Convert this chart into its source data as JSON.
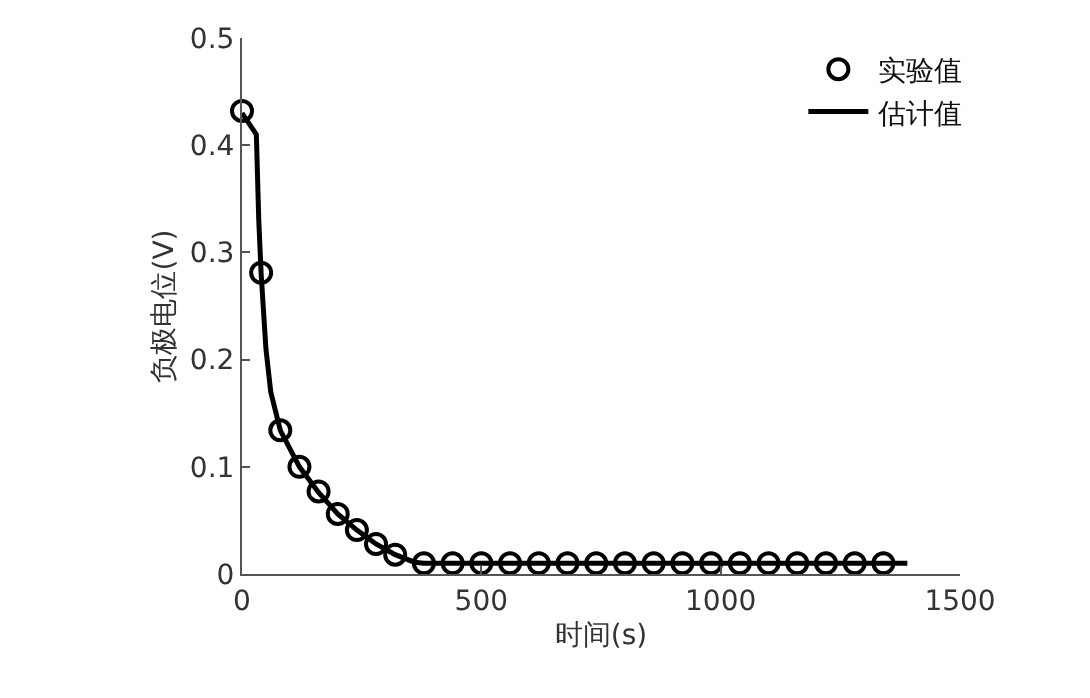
{
  "chart_data": {
    "type": "line",
    "xlabel": "时间(s)",
    "ylabel": "负极电位(V)",
    "xlim": [
      0,
      1500
    ],
    "ylim": [
      0,
      0.5
    ],
    "xticks": [
      0,
      500,
      1000,
      1500
    ],
    "yticks": [
      0,
      0.1,
      0.2,
      0.3,
      0.4,
      0.5
    ],
    "grid": false,
    "legend": "top right",
    "series": [
      {
        "name": "实验值",
        "type": "scatter",
        "marker": "circle",
        "color": "#000000",
        "x": [
          0,
          40,
          80,
          120,
          160,
          200,
          240,
          280,
          320,
          380,
          440,
          500,
          560,
          620,
          680,
          740,
          800,
          860,
          920,
          980,
          1040,
          1100,
          1160,
          1220,
          1280,
          1340
        ],
        "values": [
          0.432,
          0.281,
          0.134,
          0.1,
          0.077,
          0.056,
          0.041,
          0.028,
          0.018,
          0.01,
          0.01,
          0.01,
          0.01,
          0.01,
          0.01,
          0.01,
          0.01,
          0.01,
          0.01,
          0.01,
          0.01,
          0.01,
          0.01,
          0.01,
          0.01,
          0.01
        ]
      },
      {
        "name": "估计值",
        "marker": "none",
        "line_style": "solid",
        "color": "#000000",
        "x": [
          0,
          30,
          35,
          40,
          50,
          60,
          80,
          120,
          160,
          200,
          240,
          280,
          320,
          360,
          380,
          1390
        ],
        "values": [
          0.43,
          0.41,
          0.33,
          0.28,
          0.21,
          0.17,
          0.134,
          0.1,
          0.076,
          0.056,
          0.041,
          0.028,
          0.018,
          0.011,
          0.01,
          0.01
        ]
      }
    ]
  }
}
